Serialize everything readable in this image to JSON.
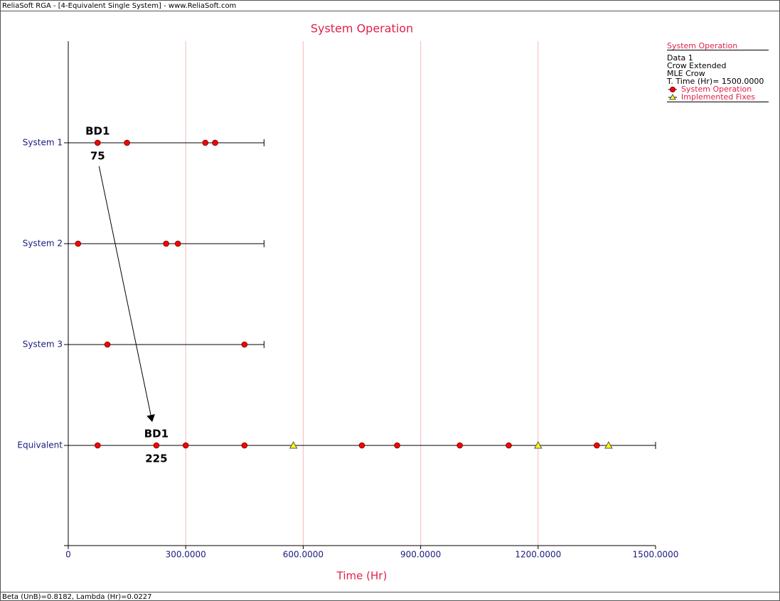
{
  "chart_data": {
    "type": "timeline",
    "window_title": "ReliaSoft RGA - [4-Equivalent Single System] - www.ReliaSoft.com",
    "title": "System Operation",
    "x_label": "Time (Hr)",
    "status_text": "Beta (UnB)=0.8182, Lambda (Hr)=0.0227",
    "categories": [
      "System 1",
      "System 2",
      "System 3",
      "Equivalent"
    ],
    "end_times": [
      500,
      500,
      500,
      1500
    ],
    "series": [
      {
        "name": "System Operation",
        "color": "#ff0000",
        "marker": "circle",
        "rows": [
          [
            75,
            150,
            350,
            375
          ],
          [
            25,
            250,
            280
          ],
          [
            100,
            450
          ],
          [
            75,
            225,
            300,
            450,
            750,
            840,
            1000,
            1125,
            1350
          ]
        ]
      },
      {
        "name": "Implemented Fixes",
        "color": "#ffff00",
        "marker": "triangle",
        "rows": [
          [],
          [],
          [],
          [
            575,
            1200,
            1380
          ]
        ]
      }
    ],
    "annotations": [
      {
        "label": "BD1",
        "value": 75
      },
      {
        "label": "BD1",
        "value": 225
      }
    ],
    "xlim": [
      0,
      1500
    ],
    "xticks": [
      0,
      {
        "value": 300,
        "label": "300.0000"
      },
      {
        "value": 600,
        "label": "600.0000"
      },
      {
        "value": 900,
        "label": "900.0000"
      },
      {
        "value": 1200,
        "label": "1200.0000"
      },
      {
        "value": 1500,
        "label": "1500.0000"
      }
    ],
    "grid": true,
    "legend_title": "System Operation",
    "legend_info": [
      "Data 1",
      "Crow Extended",
      "MLE Crow",
      "T. Time (Hr)= 1500.0000"
    ]
  }
}
